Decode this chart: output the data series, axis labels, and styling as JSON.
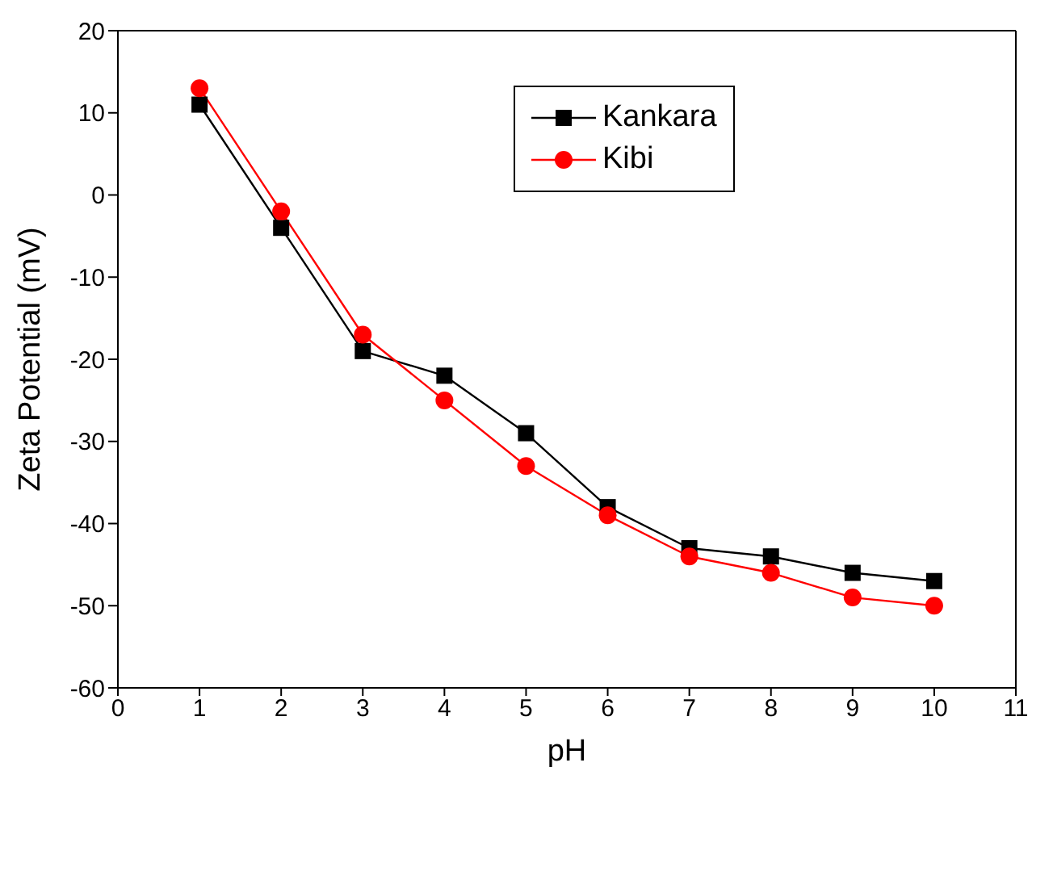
{
  "chart_data": {
    "type": "line",
    "xlabel": "pH",
    "ylabel": "Zeta Potential (mV)",
    "x": [
      1,
      2,
      3,
      4,
      5,
      6,
      7,
      8,
      9,
      10
    ],
    "series": [
      {
        "name": "Kankara",
        "color": "#000000",
        "marker": "square",
        "values": [
          11,
          -4,
          -19,
          -22,
          -29,
          -38,
          -43,
          -44,
          -46,
          -47
        ]
      },
      {
        "name": "Kibi",
        "color": "#ff0000",
        "marker": "circle",
        "values": [
          13,
          -2,
          -17,
          -25,
          -33,
          -39,
          -44,
          -46,
          -49,
          -50
        ]
      }
    ],
    "xlim": [
      0,
      11
    ],
    "xticks": [
      0,
      1,
      2,
      3,
      4,
      5,
      6,
      7,
      8,
      9,
      10,
      11
    ],
    "ylim": [
      -60,
      20
    ],
    "yticks": [
      -60,
      -50,
      -40,
      -30,
      -20,
      -10,
      0,
      10,
      20
    ],
    "grid": false,
    "legend": "top right"
  }
}
